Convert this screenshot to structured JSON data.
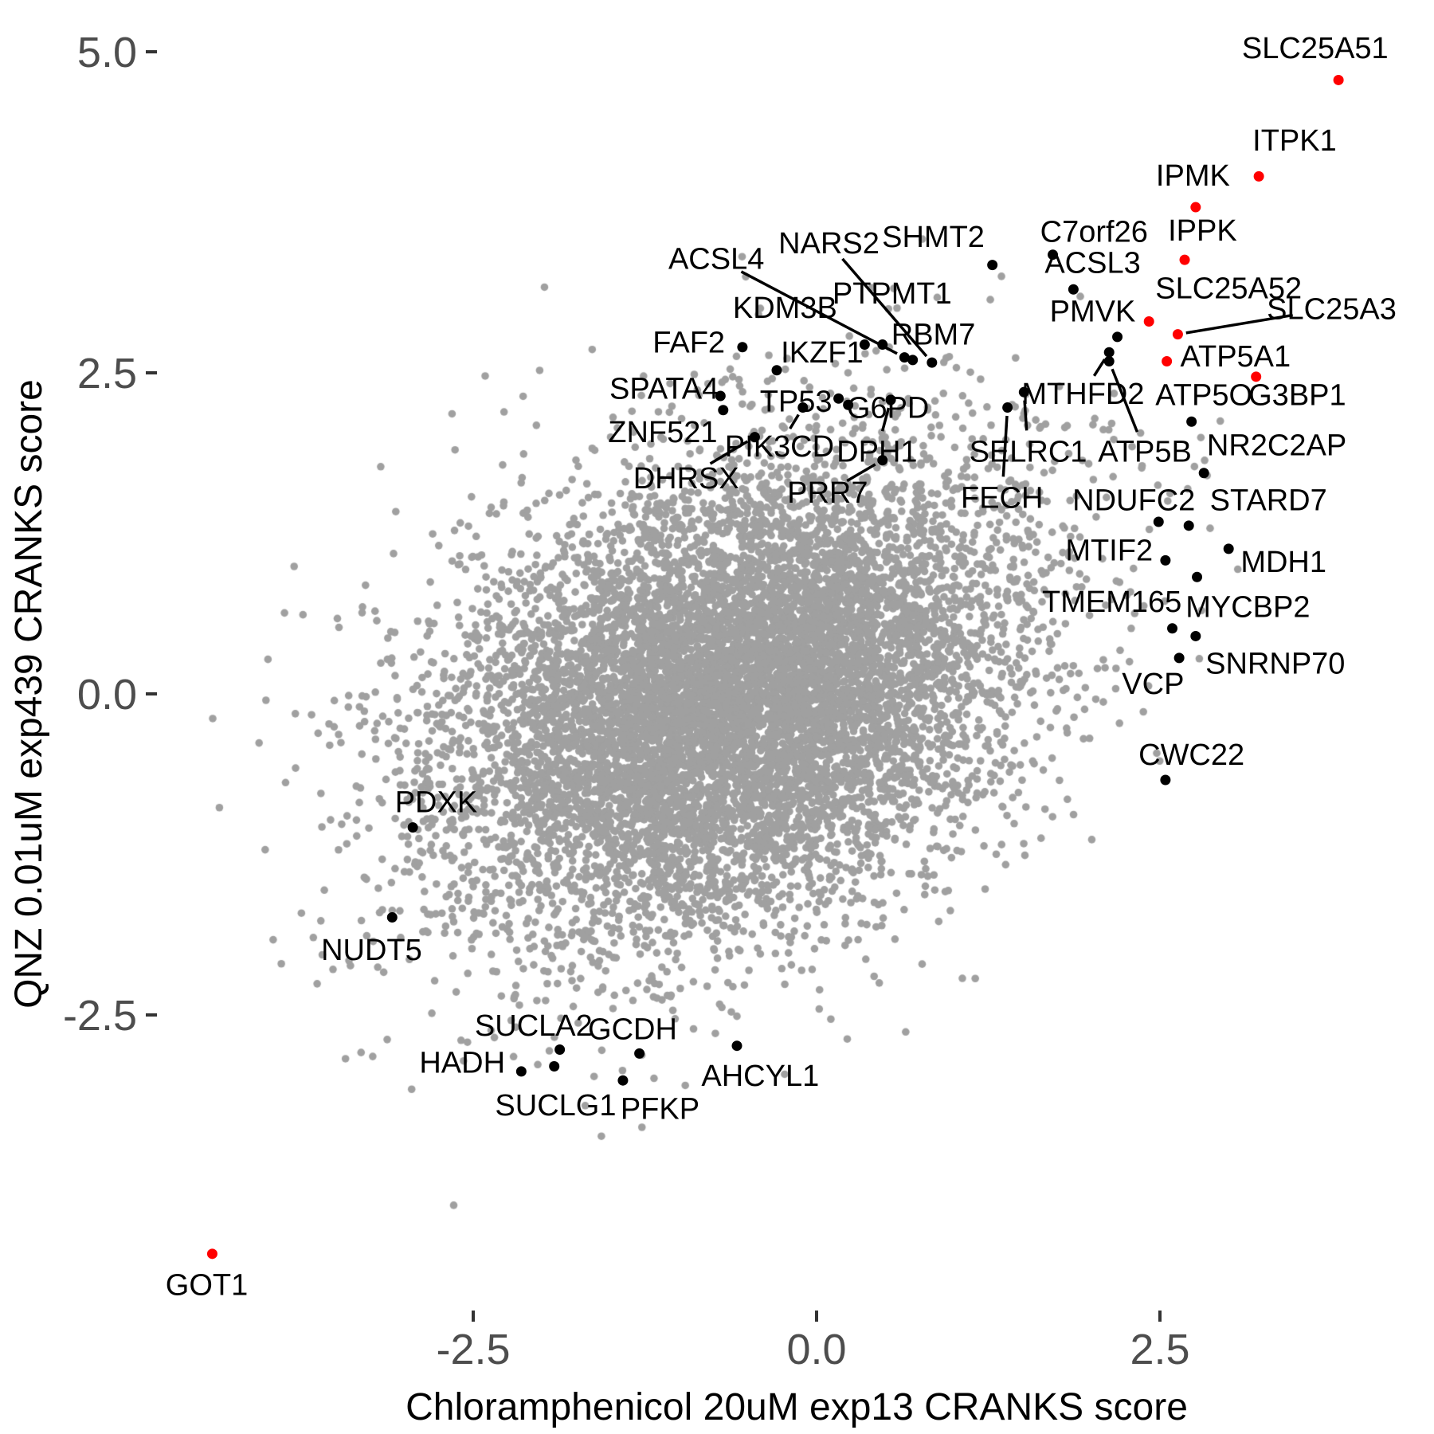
{
  "chart_data": {
    "type": "scatter",
    "title": "",
    "xlabel": "Chloramphenicol 20uM exp13 CRANKS score",
    "ylabel": "QNZ 0.01uM exp439 CRANKS score",
    "x_ticks": [
      "-2.5",
      "0.0",
      "2.5"
    ],
    "x_tick_values": [
      -2.5,
      0.0,
      2.5
    ],
    "y_ticks": [
      "-2.5",
      "0.0",
      "2.5",
      "5.0"
    ],
    "y_tick_values": [
      -2.5,
      0.0,
      2.5,
      5.0
    ],
    "xlim": [
      -4.8,
      4.5
    ],
    "ylim": [
      -4.8,
      5.4
    ],
    "grid": "off",
    "legend": "none",
    "colors": {
      "background_point": "#a0a0a0",
      "hit_point": "#000000",
      "highlight_point": "#ff0000",
      "tick_text": "#4d4d4d",
      "tick_mark": "#333333",
      "axis_title": "#000000"
    },
    "point_radius": {
      "background": 4.8,
      "labeled": 6.5
    },
    "background_cloud": {
      "description": "unlabeled genes, dense correlated bivariate-normal cloud centered slightly below/left of origin",
      "n": 9500,
      "center": [
        -0.62,
        -0.03
      ],
      "sd": [
        1.05,
        0.93
      ],
      "rho": 0.32,
      "seed": 20240613
    },
    "labeled_points": [
      {
        "gene": "SLC25A51",
        "x": 3.8,
        "y": 4.78,
        "color": "red",
        "lx": 3.63,
        "ly": 5.03,
        "seg": false
      },
      {
        "gene": "ITPK1",
        "x": 3.22,
        "y": 4.03,
        "color": "red",
        "lx": 3.48,
        "ly": 4.31,
        "seg": false
      },
      {
        "gene": "IPMK",
        "x": 2.76,
        "y": 3.79,
        "color": "red",
        "lx": 2.74,
        "ly": 4.04,
        "seg": false
      },
      {
        "gene": "IPPK",
        "x": 2.68,
        "y": 3.38,
        "color": "red",
        "lx": 2.81,
        "ly": 3.61,
        "seg": false
      },
      {
        "gene": "SLC25A52",
        "x": 2.42,
        "y": 2.9,
        "color": "red",
        "lx": 3.0,
        "ly": 3.16,
        "seg": false
      },
      {
        "gene": "SLC25A3",
        "x": 2.63,
        "y": 2.8,
        "color": "red",
        "lx": 3.75,
        "ly": 3.0,
        "seg": true
      },
      {
        "gene": "ATP5A1",
        "x": 2.55,
        "y": 2.59,
        "color": "red",
        "lx": 3.05,
        "ly": 2.63,
        "seg": false
      },
      {
        "gene": "G3BP1",
        "x": 3.2,
        "y": 2.47,
        "color": "red",
        "lx": 3.5,
        "ly": 2.33,
        "seg": false
      },
      {
        "gene": "GOT1",
        "x": -4.4,
        "y": -4.36,
        "color": "red",
        "lx": -4.44,
        "ly": -4.6,
        "seg": false
      },
      {
        "gene": "C7orf26",
        "x": 1.72,
        "y": 3.42,
        "color": "black",
        "lx": 2.02,
        "ly": 3.6,
        "seg": false
      },
      {
        "gene": "SHMT2",
        "x": 1.28,
        "y": 3.34,
        "color": "black",
        "lx": 0.85,
        "ly": 3.56,
        "seg": false
      },
      {
        "gene": "ACSL3",
        "x": 1.87,
        "y": 3.15,
        "color": "black",
        "lx": 2.01,
        "ly": 3.36,
        "seg": false
      },
      {
        "gene": "PMVK",
        "x": 2.19,
        "y": 2.78,
        "color": "black",
        "lx": 2.01,
        "ly": 2.98,
        "seg": false
      },
      {
        "gene": "NARS2",
        "x": 0.84,
        "y": 2.58,
        "color": "black",
        "lx": 0.09,
        "ly": 3.51,
        "seg": true
      },
      {
        "gene": "ACSL4",
        "x": 0.64,
        "y": 2.62,
        "color": "black",
        "lx": -0.73,
        "ly": 3.39,
        "seg": true
      },
      {
        "gene": "PTPMT1",
        "x": 0.48,
        "y": 2.72,
        "color": "black",
        "lx": 0.55,
        "ly": 3.12,
        "seg": false
      },
      {
        "gene": "KDM3B",
        "x": -0.29,
        "y": 2.52,
        "color": "black",
        "lx": -0.23,
        "ly": 3.01,
        "seg": false
      },
      {
        "gene": "IKZF1",
        "x": 0.35,
        "y": 2.72,
        "color": "black",
        "lx": 0.04,
        "ly": 2.66,
        "seg": false
      },
      {
        "gene": "RBM7",
        "x": 0.7,
        "y": 2.6,
        "color": "black",
        "lx": 0.85,
        "ly": 2.8,
        "seg": false
      },
      {
        "gene": "FAF2",
        "x": -0.54,
        "y": 2.7,
        "color": "black",
        "lx": -0.93,
        "ly": 2.74,
        "seg": false
      },
      {
        "gene": "SPATA4",
        "x": -0.7,
        "y": 2.32,
        "color": "black",
        "lx": -1.11,
        "ly": 2.38,
        "seg": false
      },
      {
        "gene": "ZNF521",
        "x": -0.68,
        "y": 2.21,
        "color": "black",
        "lx": -1.12,
        "ly": 2.04,
        "seg": false
      },
      {
        "gene": "TP53",
        "x": 0.16,
        "y": 2.3,
        "color": "black",
        "lx": -0.15,
        "ly": 2.28,
        "seg": false
      },
      {
        "gene": "G6PD",
        "x": 0.23,
        "y": 2.25,
        "color": "black",
        "lx": 0.52,
        "ly": 2.23,
        "seg": false
      },
      {
        "gene": "MTHFD2",
        "x": 2.13,
        "y": 2.66,
        "color": "black",
        "lx": 1.94,
        "ly": 2.34,
        "seg": true
      },
      {
        "gene": "ATP5B",
        "x": 2.13,
        "y": 2.59,
        "color": "black",
        "lx": 2.39,
        "ly": 1.89,
        "seg": true
      },
      {
        "gene": "SELRC1",
        "x": 1.51,
        "y": 2.35,
        "color": "black",
        "lx": 1.54,
        "ly": 1.89,
        "seg": true
      },
      {
        "gene": "FECH",
        "x": 1.39,
        "y": 2.23,
        "color": "black",
        "lx": 1.35,
        "ly": 1.53,
        "seg": true
      },
      {
        "gene": "PIK3CD",
        "x": -0.1,
        "y": 2.23,
        "color": "black",
        "lx": -0.27,
        "ly": 1.93,
        "seg": true
      },
      {
        "gene": "DPH1",
        "x": 0.54,
        "y": 2.29,
        "color": "black",
        "lx": 0.44,
        "ly": 1.89,
        "seg": true
      },
      {
        "gene": "DHRSX",
        "x": -0.45,
        "y": 2.0,
        "color": "black",
        "lx": -0.95,
        "ly": 1.68,
        "seg": true
      },
      {
        "gene": "PRR7",
        "x": 0.48,
        "y": 1.82,
        "color": "black",
        "lx": 0.08,
        "ly": 1.57,
        "seg": true
      },
      {
        "gene": "ATP5O",
        "x": 2.73,
        "y": 2.12,
        "color": "black",
        "lx": 2.82,
        "ly": 2.33,
        "seg": false
      },
      {
        "gene": "NR2C2AP",
        "x": 2.82,
        "y": 1.72,
        "color": "black",
        "lx": 3.35,
        "ly": 1.94,
        "seg": false
      },
      {
        "gene": "NDUFC2",
        "x": 2.49,
        "y": 1.34,
        "color": "black",
        "lx": 2.31,
        "ly": 1.51,
        "seg": false
      },
      {
        "gene": "STARD7",
        "x": 2.71,
        "y": 1.31,
        "color": "black",
        "lx": 3.29,
        "ly": 1.51,
        "seg": false
      },
      {
        "gene": "MDH1",
        "x": 3.0,
        "y": 1.13,
        "color": "black",
        "lx": 3.4,
        "ly": 1.03,
        "seg": false
      },
      {
        "gene": "MTIF2",
        "x": 2.54,
        "y": 1.04,
        "color": "black",
        "lx": 2.13,
        "ly": 1.12,
        "seg": false
      },
      {
        "gene": "MYCBP2",
        "x": 2.77,
        "y": 0.91,
        "color": "black",
        "lx": 3.14,
        "ly": 0.68,
        "seg": false
      },
      {
        "gene": "TMEM165",
        "x": 2.59,
        "y": 0.51,
        "color": "black",
        "lx": 2.15,
        "ly": 0.72,
        "seg": false
      },
      {
        "gene": "SNRNP70",
        "x": 2.76,
        "y": 0.45,
        "color": "black",
        "lx": 3.34,
        "ly": 0.24,
        "seg": false
      },
      {
        "gene": "VCP",
        "x": 2.64,
        "y": 0.28,
        "color": "black",
        "lx": 2.45,
        "ly": 0.08,
        "seg": false
      },
      {
        "gene": "CWC22",
        "x": 2.54,
        "y": -0.67,
        "color": "black",
        "lx": 2.73,
        "ly": -0.47,
        "seg": false
      },
      {
        "gene": "PDXK",
        "x": -2.94,
        "y": -1.04,
        "color": "black",
        "lx": -2.77,
        "ly": -0.84,
        "seg": false
      },
      {
        "gene": "NUDT5",
        "x": -3.09,
        "y": -1.74,
        "color": "black",
        "lx": -3.24,
        "ly": -1.99,
        "seg": false
      },
      {
        "gene": "SUCLA2",
        "x": -1.87,
        "y": -2.77,
        "color": "black",
        "lx": -2.06,
        "ly": -2.58,
        "seg": false
      },
      {
        "gene": "GCDH",
        "x": -1.29,
        "y": -2.8,
        "color": "black",
        "lx": -1.34,
        "ly": -2.61,
        "seg": false
      },
      {
        "gene": "HADH",
        "x": -2.15,
        "y": -2.94,
        "color": "black",
        "lx": -2.58,
        "ly": -2.87,
        "seg": false
      },
      {
        "gene": "SUCLG1",
        "x": -1.91,
        "y": -2.9,
        "color": "black",
        "lx": -1.9,
        "ly": -3.2,
        "seg": false
      },
      {
        "gene": "PFKP",
        "x": -1.41,
        "y": -3.01,
        "color": "black",
        "lx": -1.14,
        "ly": -3.23,
        "seg": false
      },
      {
        "gene": "AHCYL1",
        "x": -0.58,
        "y": -2.74,
        "color": "black",
        "lx": -0.41,
        "ly": -2.97,
        "seg": false
      }
    ]
  }
}
